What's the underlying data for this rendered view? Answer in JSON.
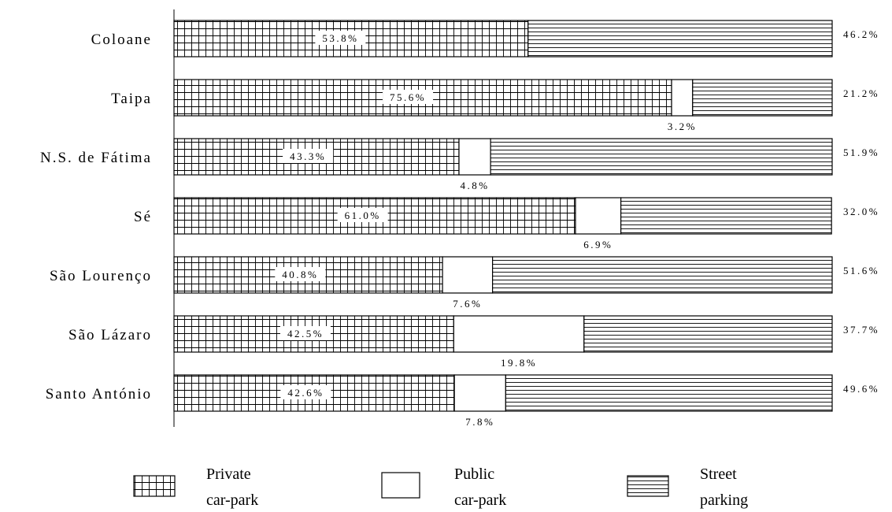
{
  "chart_data": {
    "type": "bar",
    "stacked": true,
    "orientation": "horizontal",
    "categories": [
      "Coloane",
      "Taipa",
      "N.S. de Fátima",
      "Sé",
      "São Lourenço",
      "São Lázaro",
      "Santo António"
    ],
    "series": [
      {
        "name": "Private car-park",
        "values": [
          53.8,
          75.6,
          43.3,
          61.0,
          40.8,
          42.5,
          42.6
        ],
        "labels": [
          "53.8%",
          "75.6%",
          "43.3%",
          "61.0%",
          "40.8%",
          "42.5%",
          "42.6%"
        ],
        "pattern": "grid"
      },
      {
        "name": "Public car-park",
        "values": [
          0,
          3.2,
          4.8,
          6.9,
          7.6,
          19.8,
          7.8
        ],
        "labels": [
          "",
          "3.2%",
          "4.8%",
          "6.9%",
          "7.6%",
          "19.8%",
          "7.8%"
        ],
        "pattern": "plain"
      },
      {
        "name": "Street parking",
        "values": [
          46.2,
          21.2,
          51.9,
          32.0,
          51.6,
          37.7,
          49.6
        ],
        "labels": [
          "46.2%",
          "21.2%",
          "51.9%",
          "32.0%",
          "51.6%",
          "37.7%",
          "49.6%"
        ],
        "pattern": "horizontal-lines"
      }
    ],
    "legend": {
      "position": "bottom",
      "items": [
        {
          "line1": "Private",
          "line2": "car-park",
          "pattern": "grid"
        },
        {
          "line1": "Public",
          "line2": "car-park",
          "pattern": "plain"
        },
        {
          "line1": "Street",
          "line2": "parking",
          "pattern": "horizontal-lines"
        }
      ]
    },
    "title": "",
    "xlabel": "",
    "ylabel": "",
    "xlim": [
      0,
      100
    ],
    "grid": false,
    "colors": {
      "stroke": "#000000",
      "fill": "#ffffff",
      "pattern": "#000000"
    }
  }
}
